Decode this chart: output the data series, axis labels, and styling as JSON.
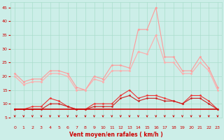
{
  "background_color": "#cceee8",
  "grid_color": "#aaddcc",
  "xlabel": "Vent moyen/en rafales ( km/h )",
  "xlabel_color": "#cc0000",
  "tick_color": "#cc0000",
  "xlim": [
    -0.5,
    23.5
  ],
  "ylim": [
    5,
    47
  ],
  "yticks": [
    5,
    10,
    15,
    20,
    25,
    30,
    35,
    40,
    45
  ],
  "xticks": [
    0,
    1,
    2,
    3,
    4,
    5,
    6,
    7,
    8,
    9,
    10,
    11,
    12,
    13,
    14,
    15,
    16,
    17,
    18,
    19,
    20,
    21,
    22,
    23
  ],
  "series": [
    {
      "x": [
        0,
        1,
        2,
        3,
        4,
        5,
        6,
        7,
        8,
        9,
        10,
        11,
        12,
        13,
        14,
        15,
        16,
        17,
        18,
        19,
        20,
        21,
        22,
        23
      ],
      "y": [
        21,
        18,
        19,
        19,
        22,
        22,
        21,
        16,
        15,
        20,
        19,
        24,
        24,
        23,
        37,
        37,
        45,
        27,
        27,
        22,
        22,
        27,
        23,
        16
      ],
      "color": "#ff9999",
      "marker": "D",
      "markersize": 1.5,
      "linewidth": 0.8
    },
    {
      "x": [
        0,
        1,
        2,
        3,
        4,
        5,
        6,
        7,
        8,
        9,
        10,
        11,
        12,
        13,
        14,
        15,
        16,
        17,
        18,
        19,
        20,
        21,
        22,
        23
      ],
      "y": [
        20,
        17,
        18,
        18,
        21,
        21,
        20,
        15,
        15,
        19,
        18,
        22,
        22,
        22,
        29,
        28,
        35,
        25,
        25,
        21,
        21,
        25,
        22,
        15
      ],
      "color": "#ffaaaa",
      "marker": "D",
      "markersize": 1.5,
      "linewidth": 0.8
    },
    {
      "x": [
        0,
        1,
        2,
        3,
        4,
        5,
        6,
        7,
        8,
        9,
        10,
        11,
        12,
        13,
        14,
        15,
        16,
        17,
        18,
        19,
        20,
        21,
        22,
        23
      ],
      "y": [
        8,
        8,
        9,
        9,
        12,
        11,
        9,
        8,
        8,
        10,
        10,
        10,
        13,
        15,
        12,
        13,
        13,
        12,
        11,
        10,
        13,
        13,
        11,
        8
      ],
      "color": "#ee3333",
      "marker": "D",
      "markersize": 1.5,
      "linewidth": 0.8
    },
    {
      "x": [
        0,
        1,
        2,
        3,
        4,
        5,
        6,
        7,
        8,
        9,
        10,
        11,
        12,
        13,
        14,
        15,
        16,
        17,
        18,
        19,
        20,
        21,
        22,
        23
      ],
      "y": [
        8,
        8,
        8,
        8,
        10,
        10,
        9,
        8,
        8,
        9,
        9,
        9,
        12,
        13,
        11,
        12,
        12,
        11,
        11,
        10,
        12,
        12,
        10,
        8
      ],
      "color": "#cc2222",
      "marker": "D",
      "markersize": 1.5,
      "linewidth": 0.8
    },
    {
      "x": [
        0,
        1,
        2,
        3,
        4,
        5,
        6,
        7,
        8,
        9,
        10,
        11,
        12,
        13,
        14,
        15,
        16,
        17,
        18,
        19,
        20,
        21,
        22,
        23
      ],
      "y": [
        8,
        8,
        8,
        8,
        8,
        8,
        8,
        8,
        8,
        8,
        8,
        8,
        8,
        8,
        8,
        8,
        8,
        8,
        8,
        8,
        8,
        8,
        8,
        8
      ],
      "color": "#cc0000",
      "marker": null,
      "markersize": 0,
      "linewidth": 1.2
    }
  ],
  "arrow_color": "#cc0000"
}
